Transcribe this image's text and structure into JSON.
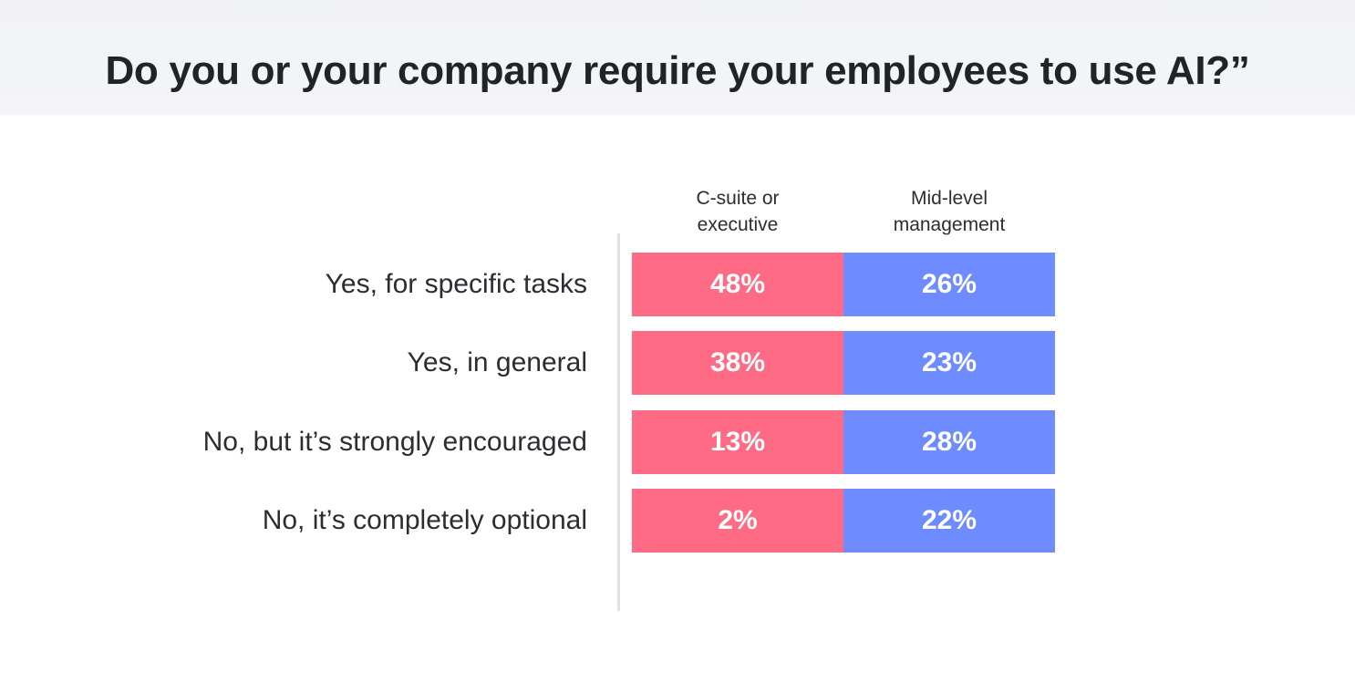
{
  "chart_data": {
    "type": "table",
    "title": "Do you or your company require your employees to use AI?”",
    "columns": [
      {
        "name": "C-suite or\nexecutive",
        "line1": "C-suite or",
        "line2": "executive",
        "color": "#ff6b85"
      },
      {
        "name": "Mid-level\nmanagement",
        "line1": "Mid-level",
        "line2": "management",
        "color": "#6e8cff"
      }
    ],
    "rows": [
      {
        "label": "Yes, for specific tasks",
        "values": [
          "48%",
          "26%"
        ]
      },
      {
        "label": "Yes, in general",
        "values": [
          "38%",
          "23%"
        ]
      },
      {
        "label": "No, but it’s strongly encouraged",
        "values": [
          "13%",
          "28%"
        ]
      },
      {
        "label": "No, it’s completely optional",
        "values": [
          "2%",
          "22%"
        ]
      }
    ],
    "xlabel": "",
    "ylabel": ""
  }
}
